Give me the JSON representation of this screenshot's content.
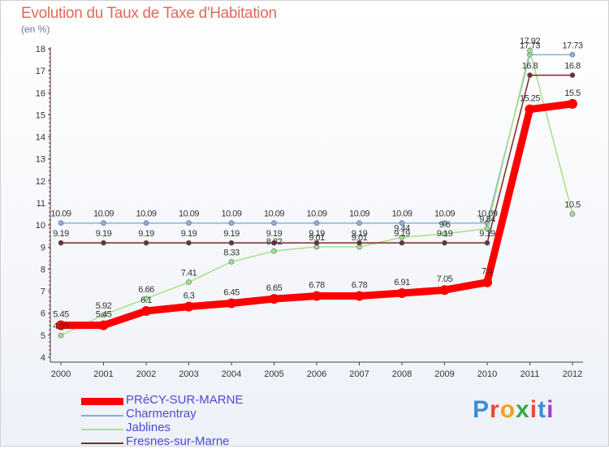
{
  "header": {
    "title": "Evolution du Taux de Taxe d'Habitation",
    "subtitle": "(en %)"
  },
  "logo": {
    "text": "Proxiti",
    "letters": [
      "P",
      "r",
      "o",
      "x",
      "i",
      "t",
      "i"
    ],
    "colors": [
      "#3a8fd8",
      "#e84a3a",
      "#f0a020",
      "#3aa84a",
      "#e84a3a",
      "#3a8fd8",
      "#a040c0"
    ]
  },
  "chart_data": {
    "type": "line",
    "title": "Evolution du Taux de Taxe d'Habitation",
    "ylabel": "(en %)",
    "xlabel": "",
    "ylim": [
      4,
      18
    ],
    "yticks": [
      4,
      5,
      6,
      7,
      8,
      9,
      10,
      11,
      12,
      13,
      14,
      15,
      16,
      17,
      18
    ],
    "x": [
      "2000",
      "2001",
      "2002",
      "2003",
      "2004",
      "2005",
      "2006",
      "2007",
      "2008",
      "2009",
      "2010",
      "2011",
      "2012"
    ],
    "grid": false,
    "legend_position": "bottom-left",
    "series": [
      {
        "name": "PRéCY-SUR-MARNE",
        "color": "#ff0000",
        "values": [
          5.45,
          5.45,
          6.1,
          6.3,
          6.45,
          6.65,
          6.78,
          6.78,
          6.91,
          7.05,
          7.4,
          15.25,
          15.5
        ],
        "labels": [
          "5.45",
          "5.45",
          "6.1",
          "6.3",
          "6.45",
          "6.65",
          "6.78",
          "6.78",
          "6.91",
          "7.05",
          "7.4",
          "15.25",
          "15.5"
        ]
      },
      {
        "name": "Charmentray",
        "color": "#88b0d8",
        "values": [
          10.09,
          10.09,
          10.09,
          10.09,
          10.09,
          10.09,
          10.09,
          10.09,
          10.09,
          10.09,
          10.09,
          17.73,
          17.73
        ],
        "labels": [
          "10.09",
          "10.09",
          "10.09",
          "10.09",
          "10.09",
          "10.09",
          "10.09",
          "10.09",
          "10.09",
          "10.09",
          "10.09",
          "17.73",
          "17.73"
        ]
      },
      {
        "name": "Jablines",
        "color": "#a8e080",
        "values": [
          4.99,
          5.92,
          6.66,
          7.41,
          8.33,
          8.82,
          9.01,
          9.01,
          9.44,
          9.6,
          9.84,
          17.92,
          10.5
        ],
        "labels": [
          "4.99",
          "5.92",
          "6.66",
          "7.41",
          "8.33",
          "8.82",
          "9.01",
          "9.01",
          "9.44",
          "9.6",
          "9.84",
          "17.92",
          "10.5"
        ]
      },
      {
        "name": "Fresnes-sur-Marne",
        "color": "#7a2a2a",
        "values": [
          9.19,
          9.19,
          9.19,
          9.19,
          9.19,
          9.19,
          9.19,
          9.19,
          9.19,
          9.19,
          9.19,
          16.8,
          16.8
        ],
        "labels": [
          "9.19",
          "9.19",
          "9.19",
          "9.19",
          "9.19",
          "9.19",
          "9.19",
          "9.19",
          "9.19",
          "9.19",
          "9.19",
          "16.8",
          "16.8"
        ]
      }
    ]
  }
}
